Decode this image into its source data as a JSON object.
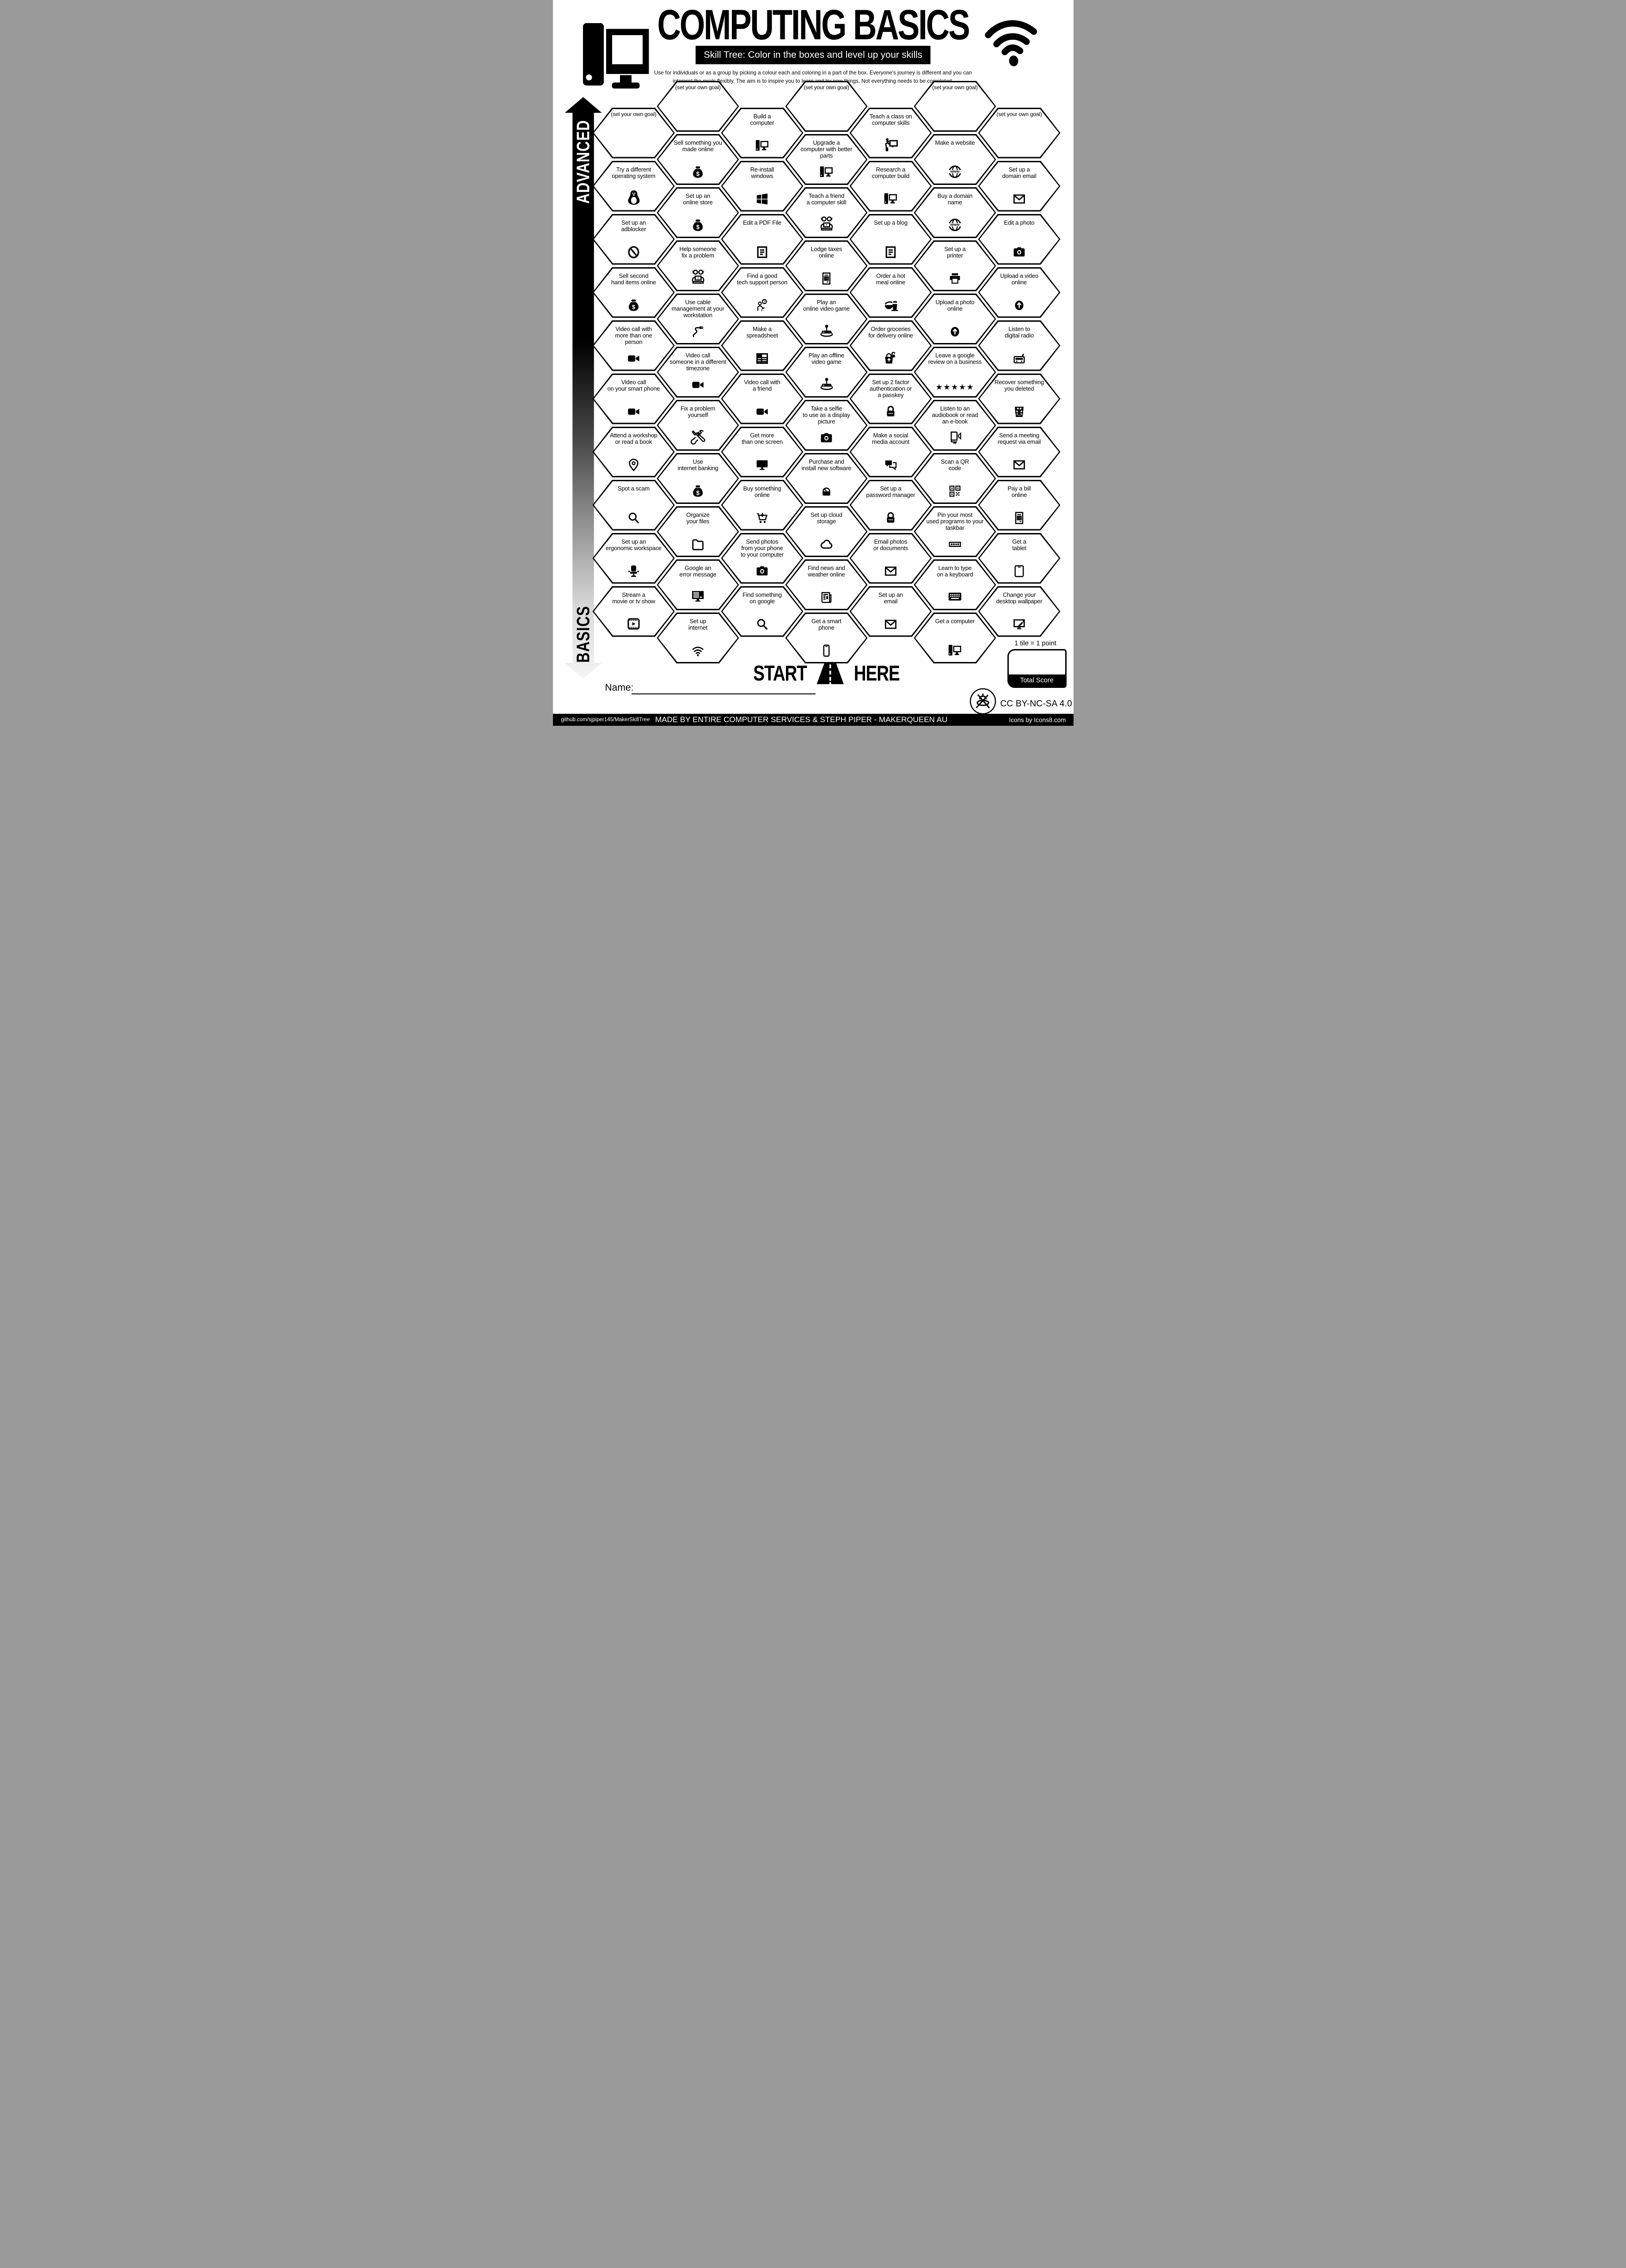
{
  "header": {
    "title": "COMPUTING BASICS",
    "subtitle": "Skill Tree:  Color in the boxes and level up your skills",
    "instructions": "Use for individuals or as a group by picking a colour each and coloring in a part of the box.  Everyone's journey is different and you can interpret the goals flexibly.  The aim is to inspire you to learn and try new things. Not everything needs to be completed."
  },
  "axis": {
    "top_label": "ADVANCED",
    "bottom_label": "BASICS"
  },
  "start_marker": {
    "start": "START",
    "here": "HERE"
  },
  "name_field": {
    "label": "Name:"
  },
  "scoring": {
    "note": "1 tile = 1 point",
    "box_label": "Total Score"
  },
  "license": "CC BY-NC-SA 4.0",
  "footer": {
    "left": "github.com/sjpiper145/MakerSkillTree",
    "center": "MADE BY ENTIRE COMPUTER SERVICES & STEPH PIPER  -  MAKERQUEEN AU",
    "right": "Icons by Icons8.com"
  },
  "colors": {
    "ink": "#000000",
    "paper": "#ffffff"
  },
  "tiles": [
    {
      "col": 1,
      "row": 0,
      "label": "(set your own goal)",
      "icon": null
    },
    {
      "col": 1,
      "row": 1,
      "label": "Try a different\noperating system",
      "icon": "linux-penguin"
    },
    {
      "col": 1,
      "row": 2,
      "label": "Set up an\nadblocker",
      "icon": "no-entry"
    },
    {
      "col": 1,
      "row": 3,
      "label": "Sell second\nhand items online",
      "icon": "money-bag"
    },
    {
      "col": 1,
      "row": 4,
      "label": "Video call with\nmore than one\nperson",
      "icon": "video-camera"
    },
    {
      "col": 1,
      "row": 5,
      "label": "Video call\non your smart phone",
      "icon": "video-camera"
    },
    {
      "col": 1,
      "row": 6,
      "label": "Attend a workshop\nor read a book",
      "icon": "location-pin"
    },
    {
      "col": 1,
      "row": 7,
      "label": "Spot a scam",
      "icon": "magnifier"
    },
    {
      "col": 1,
      "row": 8,
      "label": "Set up an\nergonomic workspace",
      "icon": "office-chair"
    },
    {
      "col": 1,
      "row": 9,
      "label": "Stream a\nmovie or tv show",
      "icon": "film-frame"
    },
    {
      "col": 2,
      "row": 0,
      "label": "(set your own goal)",
      "icon": null
    },
    {
      "col": 2,
      "row": 1,
      "label": "Sell something you\nmade online",
      "icon": "money-bag"
    },
    {
      "col": 2,
      "row": 2,
      "label": "Set up an\nonline store",
      "icon": "money-bag"
    },
    {
      "col": 2,
      "row": 3,
      "label": "Help someone\nfix a problem",
      "icon": "people-at-laptop"
    },
    {
      "col": 2,
      "row": 4,
      "label": "Use cable\nmanagement at your\nworkstation",
      "icon": "cable"
    },
    {
      "col": 2,
      "row": 5,
      "label": "Video call\nsomeone in a different\ntimezone",
      "icon": "video-camera"
    },
    {
      "col": 2,
      "row": 6,
      "label": "Fix a problem\nyourself",
      "icon": "crossed-tools"
    },
    {
      "col": 2,
      "row": 7,
      "label": "Use\ninternet banking",
      "icon": "money-bag"
    },
    {
      "col": 2,
      "row": 8,
      "label": "Organize\nyour files",
      "icon": "folder"
    },
    {
      "col": 2,
      "row": 9,
      "label": "Google an\nerror message",
      "icon": "monitor-error"
    },
    {
      "col": 2,
      "row": 10,
      "label": "Set up\ninternet",
      "icon": "wifi"
    },
    {
      "col": 3,
      "row": 0,
      "label": "Build a\ncomputer",
      "icon": "desktop-computer"
    },
    {
      "col": 3,
      "row": 1,
      "label": "Re-install\nwindows",
      "icon": "windows-logo"
    },
    {
      "col": 3,
      "row": 2,
      "label": "Edit a PDF File",
      "icon": "document-lines"
    },
    {
      "col": 3,
      "row": 3,
      "label": "Find a good\ntech support person",
      "icon": "person-question"
    },
    {
      "col": 3,
      "row": 4,
      "label": "Make a\nspreadsheet",
      "icon": "spreadsheet"
    },
    {
      "col": 3,
      "row": 5,
      "label": "Video call with\na friend",
      "icon": "video-camera"
    },
    {
      "col": 3,
      "row": 6,
      "label": "Get more\nthan one screen",
      "icon": "monitor"
    },
    {
      "col": 3,
      "row": 7,
      "label": "Buy something\nonline",
      "icon": "shopping-cart"
    },
    {
      "col": 3,
      "row": 8,
      "label": "Send photos\nfrom your phone\nto your computer",
      "icon": "camera"
    },
    {
      "col": 3,
      "row": 9,
      "label": "Find something\non google",
      "icon": "magnifier"
    },
    {
      "col": 4,
      "row": 0,
      "label": "(set your own goal)",
      "icon": null
    },
    {
      "col": 4,
      "row": 1,
      "label": "Upgrade a\ncomputer with better\nparts",
      "icon": "desktop-computer"
    },
    {
      "col": 4,
      "row": 2,
      "label": "Teach a friend\na computer skill",
      "icon": "people-at-laptop"
    },
    {
      "col": 4,
      "row": 3,
      "label": "Lodge taxes\nonline",
      "icon": "tax-form"
    },
    {
      "col": 4,
      "row": 4,
      "label": "Play an\nonline video game",
      "icon": "joystick"
    },
    {
      "col": 4,
      "row": 5,
      "label": "Play an offline\nvideo game",
      "icon": "joystick"
    },
    {
      "col": 4,
      "row": 6,
      "label": "Take a selfie\nto use as a display\npicture",
      "icon": "camera"
    },
    {
      "col": 4,
      "row": 7,
      "label": "Purchase and\ninstall new software",
      "icon": "software-installer"
    },
    {
      "col": 4,
      "row": 8,
      "label": "Set up cloud\nstorage",
      "icon": "cloud"
    },
    {
      "col": 4,
      "row": 9,
      "label": "Find news and\nweather online",
      "icon": "newspaper"
    },
    {
      "col": 4,
      "row": 10,
      "label": "Get a smart\nphone",
      "icon": "smartphone"
    },
    {
      "col": 5,
      "row": 0,
      "label": "Teach a class on\ncomputer skills",
      "icon": "teacher-board"
    },
    {
      "col": 5,
      "row": 1,
      "label": "Research a\ncomputer build",
      "icon": "desktop-computer"
    },
    {
      "col": 5,
      "row": 2,
      "label": "Set up a blog",
      "icon": "document-lines"
    },
    {
      "col": 5,
      "row": 3,
      "label": "Order a hot\nmeal online",
      "icon": "hot-meal"
    },
    {
      "col": 5,
      "row": 4,
      "label": "Order groceries\nfor delivery online",
      "icon": "grocery-basket"
    },
    {
      "col": 5,
      "row": 5,
      "label": "Set up 2 factor\nauthentication or\na passkey",
      "icon": "padlock"
    },
    {
      "col": 5,
      "row": 6,
      "label": "Make a social\nmedia account",
      "icon": "speech-bubbles"
    },
    {
      "col": 5,
      "row": 7,
      "label": "Set up a\npassword manager",
      "icon": "padlock"
    },
    {
      "col": 5,
      "row": 8,
      "label": "Email photos\nor documents",
      "icon": "envelope"
    },
    {
      "col": 5,
      "row": 9,
      "label": "Set up an\nemail",
      "icon": "envelope"
    },
    {
      "col": 6,
      "row": 0,
      "label": "(set your own goal)",
      "icon": null
    },
    {
      "col": 6,
      "row": 1,
      "label": "Make a website",
      "icon": "www-globe"
    },
    {
      "col": 6,
      "row": 2,
      "label": "Buy a domain\nname",
      "icon": "www-globe"
    },
    {
      "col": 6,
      "row": 3,
      "label": "Set up a\nprinter",
      "icon": "printer"
    },
    {
      "col": 6,
      "row": 4,
      "label": "Upload a photo\nonline",
      "icon": "upload-arrow"
    },
    {
      "col": 6,
      "row": 5,
      "label": "Leave a google\nreview on a business",
      "icon": "five-stars"
    },
    {
      "col": 6,
      "row": 6,
      "label": "Listen to an\naudiobook or read\nan e-book",
      "icon": "audiobook"
    },
    {
      "col": 6,
      "row": 7,
      "label": "Scan a QR\ncode",
      "icon": "qr-code"
    },
    {
      "col": 6,
      "row": 8,
      "label": "Pin your most\nused programs to your\ntaskbar",
      "icon": "taskbar"
    },
    {
      "col": 6,
      "row": 9,
      "label": "Learn to type\non a keyboard",
      "icon": "keyboard"
    },
    {
      "col": 6,
      "row": 10,
      "label": "Get a computer",
      "icon": "desktop-computer"
    },
    {
      "col": 7,
      "row": 0,
      "label": "(set your own goal)",
      "icon": null
    },
    {
      "col": 7,
      "row": 1,
      "label": "Set up a\ndomain email",
      "icon": "envelope"
    },
    {
      "col": 7,
      "row": 2,
      "label": "Edit a photo",
      "icon": "camera"
    },
    {
      "col": 7,
      "row": 3,
      "label": "Upload a video\nonline",
      "icon": "upload-arrow"
    },
    {
      "col": 7,
      "row": 4,
      "label": "Listen to\ndigital radio",
      "icon": "radio"
    },
    {
      "col": 7,
      "row": 5,
      "label": "Recover something\nyou deleted",
      "icon": "trash-can"
    },
    {
      "col": 7,
      "row": 6,
      "label": "Send a meeting\nrequest via email",
      "icon": "envelope"
    },
    {
      "col": 7,
      "row": 7,
      "label": "Pay a bill\nonline",
      "icon": "tax-form"
    },
    {
      "col": 7,
      "row": 8,
      "label": "Get a\ntablet",
      "icon": "tablet"
    },
    {
      "col": 7,
      "row": 9,
      "label": "Change your\ndesktop wallpaper",
      "icon": "wallpaper-editor"
    }
  ]
}
